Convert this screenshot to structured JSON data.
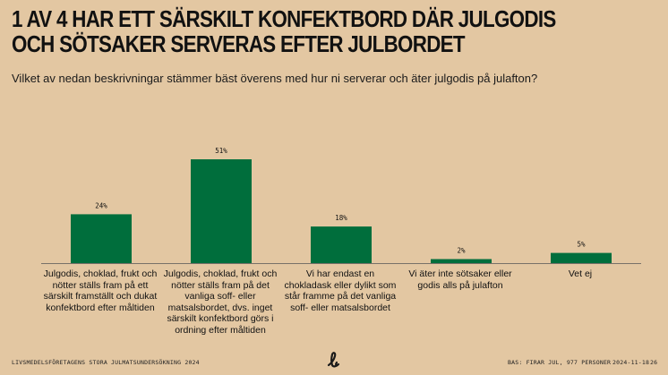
{
  "header": {
    "title_line1": "1 AV 4 HAR ETT SÄRSKILT KONFEKTBORD DÄR JULGODIS",
    "title_line2": "OCH SÖTSAKER SERVERAS EFTER JULBORDET",
    "question": "Vilket av nedan beskrivningar stämmer bäst överens med hur ni serverar och äter julgodis på julafton?"
  },
  "chart_data": {
    "type": "bar",
    "categories": [
      "Julgodis, choklad, frukt och nötter ställs fram på ett särskilt framställt och dukat konfektbord efter måltiden",
      "Julgodis, choklad, frukt och nötter ställs fram på det vanliga soff- eller matsalsbordet, dvs. inget särskilt konfektbord görs i ordning efter måltiden",
      "Vi har endast en chokladask eller dylikt som står framme på det vanliga soff- eller matsalsbordet",
      "Vi äter inte sötsaker eller godis alls på julafton",
      "Vet ej"
    ],
    "values": [
      24,
      51,
      18,
      2,
      5
    ],
    "value_labels": [
      "24%",
      "51%",
      "18%",
      "2%",
      "5%"
    ],
    "unit": "%",
    "ylim": [
      0,
      55
    ],
    "bar_color": "#006e3c",
    "grid": false,
    "legend": "none"
  },
  "footer": {
    "left": "LIVSMEDELSFÖRETAGENS STORA JULMATSUNDERSÖKNING 2024",
    "base": "BAS: FIRAR JUL, 977 PERSONER",
    "date": "2024-11-18",
    "page": "26"
  },
  "colors": {
    "background": "#e3c7a2",
    "bar": "#006e3c",
    "axis": "#555555"
  },
  "icons": {
    "logo": "script-l-logo-icon"
  }
}
